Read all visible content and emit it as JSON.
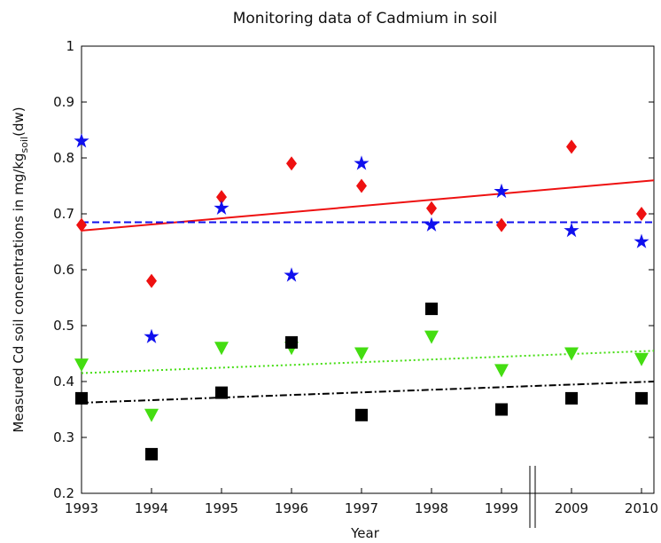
{
  "chart_data": {
    "type": "scatter",
    "title": "Monitoring data of Cadmium in soil",
    "xlabel": "Year",
    "ylabel": [
      "Measured Cd soil concentrations in mg/kg",
      "soil",
      "(dw)"
    ],
    "categories": [
      "1993",
      "1994",
      "1995",
      "1996",
      "1997",
      "1998",
      "1999",
      "2009",
      "2010"
    ],
    "ylim": [
      0.2,
      1
    ],
    "yticks": [
      0.2,
      0.3,
      0.4,
      0.5,
      0.6,
      0.7,
      0.8,
      0.9,
      1
    ],
    "series": [
      {
        "color": "#ee1111",
        "marker": "diamond",
        "values": [
          0.68,
          0.58,
          0.73,
          0.79,
          0.75,
          0.71,
          0.68,
          0.82,
          0.7
        ],
        "trend": [
          0.67,
          0.76
        ],
        "trend_style": "solid"
      },
      {
        "color": "#1010ee",
        "marker": "star",
        "values": [
          0.83,
          0.48,
          0.71,
          0.59,
          0.79,
          0.68,
          0.74,
          0.67,
          0.65
        ],
        "trend": [
          0.685,
          0.685
        ],
        "trend_style": "dashed"
      },
      {
        "color": "#44dd11",
        "marker": "triangle",
        "values": [
          0.43,
          0.34,
          0.46,
          0.46,
          0.45,
          0.48,
          0.42,
          0.45,
          0.44
        ],
        "trend": [
          0.415,
          0.455
        ],
        "trend_style": "dotted"
      },
      {
        "color": "#000000",
        "marker": "square",
        "values": [
          0.37,
          0.27,
          0.38,
          0.47,
          0.34,
          0.53,
          0.35,
          0.37,
          0.37
        ],
        "trend": [
          0.362,
          0.4
        ],
        "trend_style": "dashdot"
      }
    ]
  }
}
